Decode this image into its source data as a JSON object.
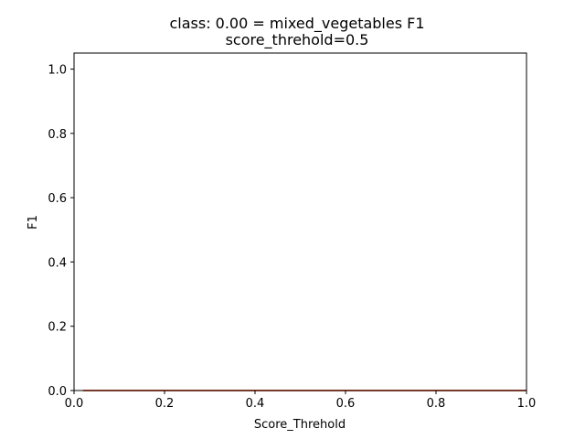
{
  "chart_data": {
    "type": "line",
    "title": "class: 0.00 = mixed_vegetables F1",
    "subtitle": "score_threhold=0.5",
    "xlabel": "Score_Threhold",
    "ylabel": "F1",
    "xlim": [
      0.0,
      1.0
    ],
    "ylim": [
      0.0,
      1.05
    ],
    "xticks": [
      "0.0",
      "0.2",
      "0.4",
      "0.6",
      "0.8",
      "1.0"
    ],
    "yticks": [
      "0.0",
      "0.2",
      "0.4",
      "0.6",
      "0.8",
      "1.0"
    ],
    "grid": false,
    "series": [
      {
        "color": "#ff7f0e",
        "x": [
          0.02,
          1.0
        ],
        "y": [
          0.0,
          0.0
        ]
      },
      {
        "color": "#d62728",
        "x": [
          0.02,
          1.0
        ],
        "y": [
          0.0,
          0.0
        ]
      }
    ]
  }
}
